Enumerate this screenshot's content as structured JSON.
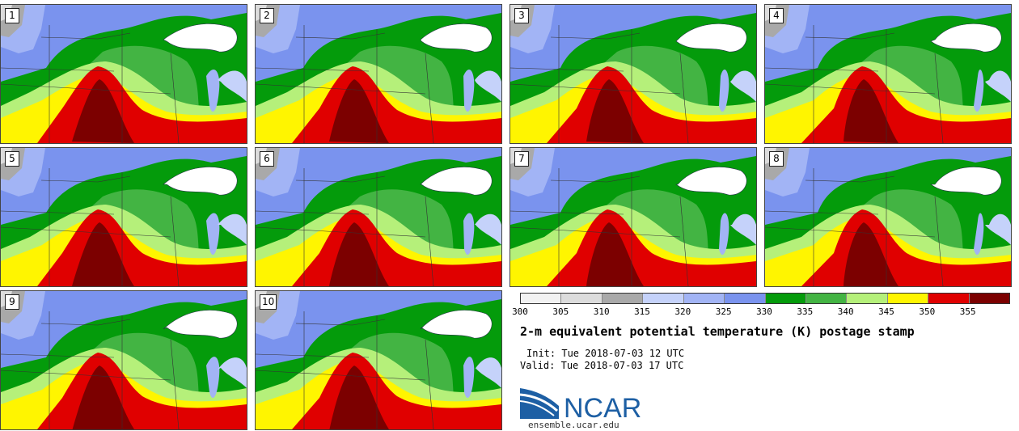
{
  "stamps": [
    {
      "label": "1"
    },
    {
      "label": "2"
    },
    {
      "label": "3"
    },
    {
      "label": "4"
    },
    {
      "label": "5"
    },
    {
      "label": "6"
    },
    {
      "label": "7"
    },
    {
      "label": "8"
    },
    {
      "label": "9"
    },
    {
      "label": "10"
    }
  ],
  "legend": {
    "ticks": [
      "300",
      "305",
      "310",
      "315",
      "320",
      "325",
      "330",
      "335",
      "340",
      "345",
      "350",
      "355"
    ],
    "colors": [
      "#f2f2f2",
      "#dcdcdc",
      "#a9a9a9",
      "#c5d2fa",
      "#a2b4f5",
      "#7a93ee",
      "#049b0b",
      "#43b443",
      "#b5f07a",
      "#fff500",
      "#e00000",
      "#7c0000"
    ]
  },
  "title": "2-m equivalent potential temperature (K) postage stamp",
  "init": "Tue 2018-07-03 12 UTC",
  "valid": "Tue 2018-07-03 17 UTC",
  "init_label": "Init:",
  "valid_label": "Valid:",
  "logo_text": "NCAR",
  "site": "ensemble.ucar.edu"
}
